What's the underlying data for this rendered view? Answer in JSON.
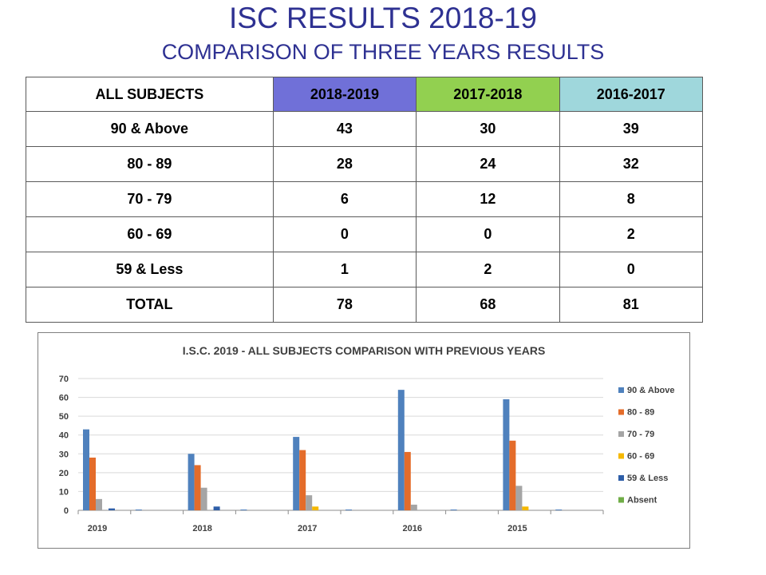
{
  "header": {
    "title": "ISC RESULTS 2018-19",
    "subtitle": "COMPARISON OF THREE YEARS RESULTS"
  },
  "table": {
    "columns": [
      "ALL SUBJECTS",
      "2018-2019",
      "2017-2018",
      "2016-2017"
    ],
    "column_colors": [
      "#ffffff",
      "#7070d8",
      "#92d050",
      "#9fd7dc"
    ],
    "rows": [
      [
        "90 & Above",
        "43",
        "30",
        "39"
      ],
      [
        "80 - 89",
        "28",
        "24",
        "32"
      ],
      [
        "70 - 79",
        "6",
        "12",
        "8"
      ],
      [
        "60 - 69",
        "0",
        "0",
        "2"
      ],
      [
        "59 & Less",
        "1",
        "2",
        "0"
      ],
      [
        "TOTAL",
        "78",
        "68",
        "81"
      ]
    ]
  },
  "chart_data": {
    "type": "bar",
    "title": "I.S.C. 2019 - ALL SUBJECTS COMPARISON WITH PREVIOUS YEARS",
    "categories": [
      "2019",
      "",
      "2018",
      "",
      "2017",
      "",
      "2016",
      "",
      "2015",
      ""
    ],
    "ylim": [
      0,
      70
    ],
    "yticks": [
      0,
      10,
      20,
      30,
      40,
      50,
      60,
      70
    ],
    "grid": true,
    "legend_position": "right",
    "series": [
      {
        "name": "90 & Above",
        "color": "#4f81bd",
        "values": [
          43,
          0,
          30,
          0,
          39,
          0,
          64,
          0,
          59,
          0
        ]
      },
      {
        "name": "80 - 89",
        "color": "#e46c2a",
        "values": [
          28,
          0,
          24,
          0,
          32,
          0,
          31,
          0,
          37,
          0
        ]
      },
      {
        "name": "70 - 79",
        "color": "#a5a5a5",
        "values": [
          6,
          0,
          12,
          0,
          8,
          0,
          3,
          0,
          13,
          0
        ]
      },
      {
        "name": "60 - 69",
        "color": "#f5b800",
        "values": [
          0,
          0,
          0,
          0,
          2,
          0,
          0,
          0,
          2,
          0
        ]
      },
      {
        "name": "59 & Less",
        "color": "#2e5ea8",
        "values": [
          1,
          0,
          2,
          0,
          0,
          0,
          0,
          0,
          0,
          0
        ]
      },
      {
        "name": "Absent",
        "color": "#70ad47",
        "values": [
          0,
          0,
          0,
          0,
          0,
          0,
          0,
          0,
          0,
          0
        ]
      }
    ],
    "extra_bars": {
      "description_values": [
        0.5,
        0.5,
        0.5,
        0.5,
        0.5
      ]
    }
  }
}
